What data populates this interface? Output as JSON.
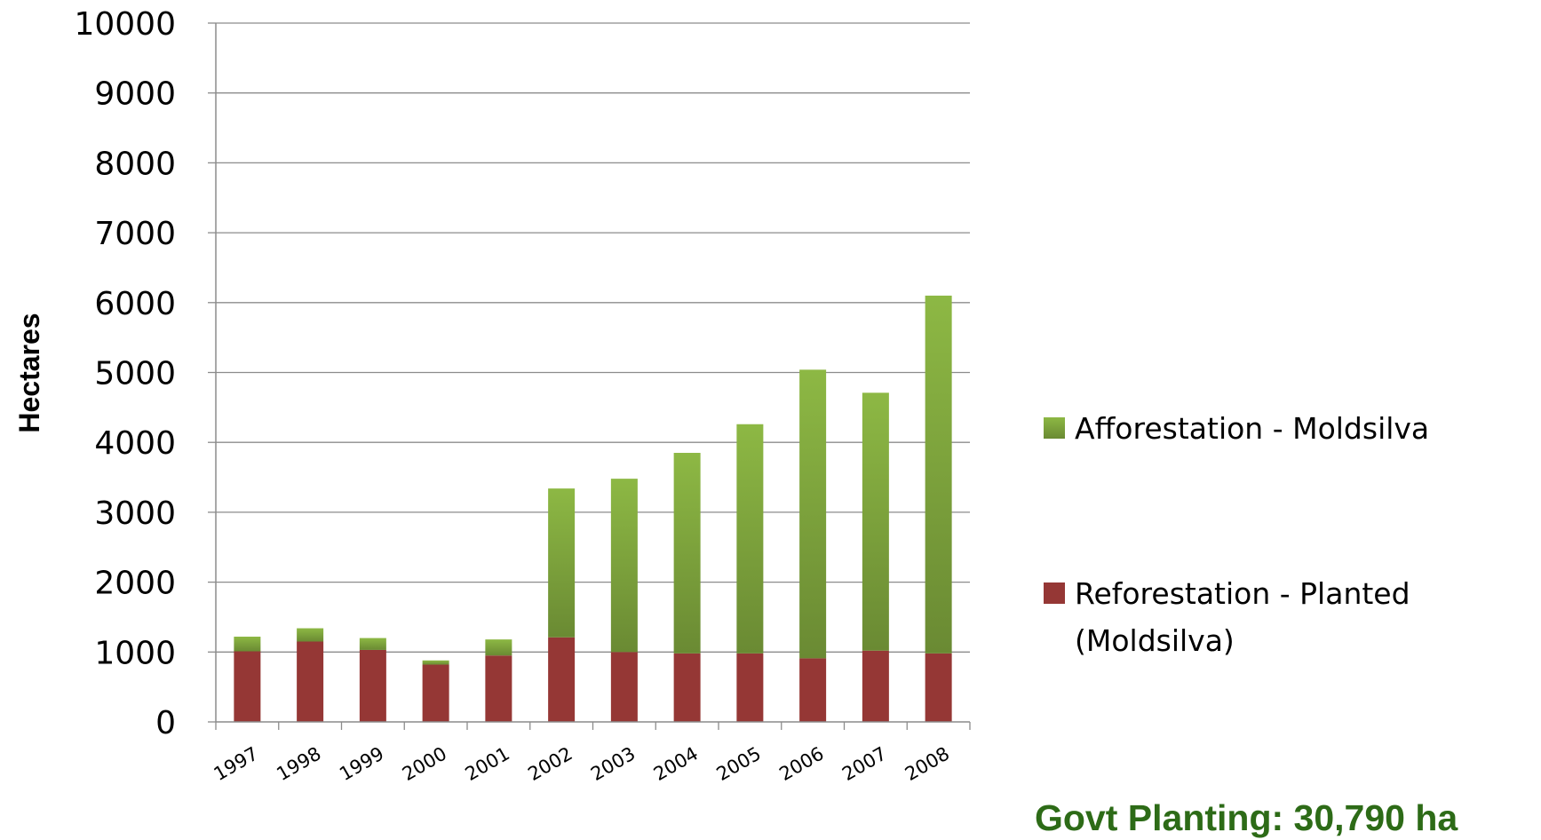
{
  "chart_data": {
    "type": "bar",
    "stacked": true,
    "categories": [
      "1997",
      "1998",
      "1999",
      "2000",
      "2001",
      "2002",
      "2003",
      "2004",
      "2005",
      "2006",
      "2007",
      "2008"
    ],
    "series": [
      {
        "name": "Reforestation - Planted (Moldsilva)",
        "color": "#953735",
        "values": [
          1010,
          1150,
          1030,
          820,
          950,
          1210,
          1000,
          980,
          980,
          910,
          1020,
          980
        ]
      },
      {
        "name": "Afforestation - Moldsilva",
        "color": "#77933c",
        "values": [
          210,
          190,
          170,
          60,
          230,
          2130,
          2480,
          2870,
          3280,
          4130,
          3690,
          5120
        ]
      }
    ],
    "ylabel": "Hectares",
    "xlabel": "",
    "ylim": [
      0,
      10000
    ],
    "yticks": [
      0,
      1000,
      2000,
      3000,
      4000,
      5000,
      6000,
      7000,
      8000,
      9000,
      10000
    ],
    "grid": true,
    "legend_position": "right"
  },
  "legend": {
    "afforestation": "Afforestation - Moldsilva",
    "reforestation_line1": "Reforestation - Planted",
    "reforestation_line2": "(Moldsilva)"
  },
  "footer_note": {
    "text": "Govt Planting: 30,790 ha",
    "color": "#2d6b17"
  }
}
